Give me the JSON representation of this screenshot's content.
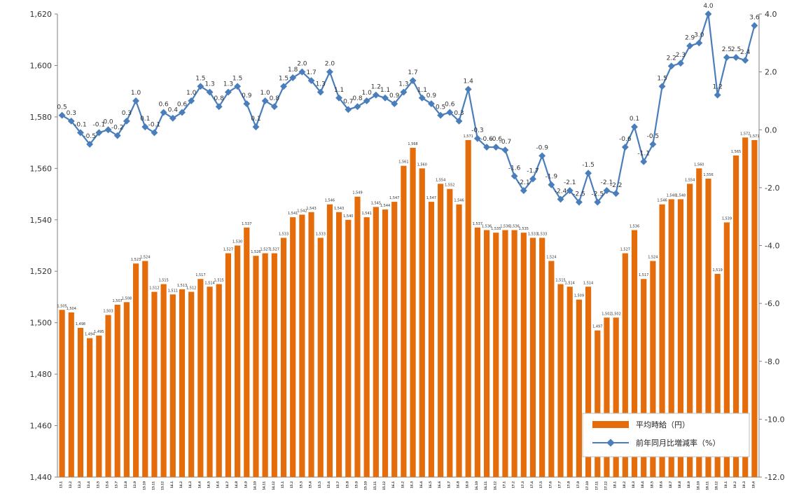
{
  "chart_data": {
    "type": "bar+line",
    "categories": [
      "13.1",
      "13.2",
      "13.3",
      "13.4",
      "13.5",
      "13.6",
      "13.7",
      "13.8",
      "13.9",
      "13.10",
      "13.11",
      "13.12",
      "14.1",
      "14.2",
      "14.3",
      "14.4",
      "14.5",
      "14.6",
      "14.7",
      "14.8",
      "14.9",
      "14.10",
      "14.11",
      "14.12",
      "15.1",
      "15.2",
      "15.3",
      "15.4",
      "15.5",
      "15.6",
      "15.7",
      "15.8",
      "15.9",
      "15.10",
      "15.11",
      "15.12",
      "16.1",
      "16.2",
      "16.3",
      "16.4",
      "16.5",
      "16.6",
      "16.7",
      "16.8",
      "16.9",
      "16.10",
      "16.11",
      "16.12",
      "17.1",
      "17.2",
      "17.3",
      "17.4",
      "17.5",
      "17.6",
      "17.7",
      "17.8",
      "17.9",
      "17.10",
      "17.11",
      "17.12",
      "18.1",
      "18.2",
      "18.3",
      "18.4",
      "18.5",
      "18.6",
      "18.7",
      "18.8",
      "18.9",
      "18.10",
      "18.11",
      "18.12",
      "19.1",
      "19.2",
      "19.3",
      "19.4"
    ],
    "series": [
      {
        "name": "平均時給（円）",
        "kind": "bar",
        "axis": "left",
        "color": "#E46C0A",
        "values": [
          1505,
          1504,
          1498,
          1494,
          1495,
          1503,
          1507,
          1508,
          1523,
          1524,
          1512,
          1515,
          1511,
          1513,
          1512,
          1517,
          1514,
          1515,
          1527,
          1530,
          1537,
          1526,
          1527,
          1527,
          1533,
          1541,
          1542,
          1543,
          1533,
          1546,
          1543,
          1540,
          1549,
          1541,
          1545,
          1544,
          1547,
          1561,
          1568,
          1560,
          1547,
          1554,
          1552,
          1546,
          1571,
          1537,
          1536,
          1535,
          1536,
          1536,
          1535,
          1533,
          1533,
          1524,
          1515,
          1514,
          1509,
          1514,
          1497,
          1502,
          1502,
          1527,
          1536,
          1517,
          1524,
          1546,
          1548,
          1548,
          1554,
          1560,
          1556,
          1519,
          1539,
          1565,
          1572,
          1571
        ]
      },
      {
        "name": "前年同月比増減率（%）",
        "kind": "line",
        "axis": "right",
        "color": "#4A7EBB",
        "values": [
          0.5,
          0.3,
          -0.1,
          -0.5,
          -0.1,
          0.0,
          -0.2,
          0.3,
          1.0,
          0.1,
          -0.1,
          0.6,
          0.4,
          0.6,
          1.0,
          1.5,
          1.3,
          0.8,
          1.3,
          1.5,
          0.9,
          0.1,
          1.0,
          0.8,
          1.5,
          1.8,
          2.0,
          1.7,
          1.3,
          2.0,
          1.1,
          0.7,
          0.8,
          1.0,
          1.2,
          1.1,
          0.9,
          1.3,
          1.7,
          1.1,
          0.9,
          0.5,
          0.6,
          0.3,
          1.4,
          -0.3,
          -0.6,
          -0.6,
          -0.7,
          -1.6,
          -2.1,
          -1.7,
          -0.9,
          -1.9,
          -2.4,
          -2.1,
          -2.5,
          -1.5,
          -2.5,
          -2.1,
          -2.2,
          -0.6,
          0.1,
          -1.1,
          -0.5,
          1.5,
          2.2,
          2.3,
          2.9,
          3.0,
          4.0,
          1.2,
          2.5,
          2.5,
          2.4,
          3.6
        ]
      }
    ],
    "y_left": {
      "min": 1440,
      "max": 1620,
      "step": 20,
      "ticks": [
        "1,440",
        "1,460",
        "1,480",
        "1,500",
        "1,520",
        "1,540",
        "1,560",
        "1,580",
        "1,600",
        "1,620"
      ]
    },
    "y_right": {
      "min": -12.0,
      "max": 4.0,
      "step": 2.0,
      "ticks": [
        "-12.0",
        "-10.0",
        "-8.0",
        "-6.0",
        "-4.0",
        "-2.0",
        "0.0",
        "2.0",
        "4.0"
      ]
    },
    "legend_placement": "bottom-right",
    "grid": false
  }
}
